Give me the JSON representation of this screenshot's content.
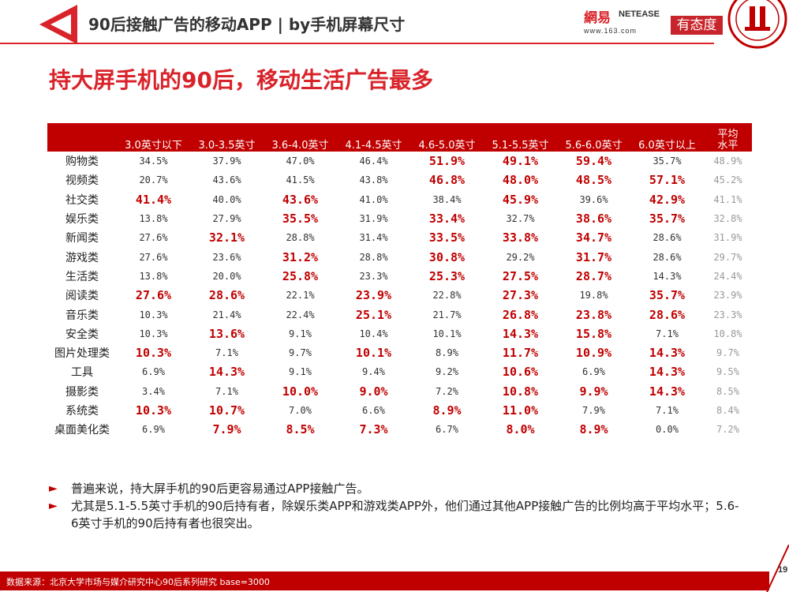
{
  "header": {
    "title": "90后接触广告的移动APP | by手机屏幕尺寸",
    "netease_cn": "網易",
    "netease_en": "NETEASE",
    "netease_url": "www.163.com",
    "youtaidu": "有态度"
  },
  "headline": "持大屏手机的90后，移动生活广告最多",
  "table": {
    "columns": [
      "3.0英寸以下",
      "3.0-3.5英寸",
      "3.6-4.0英寸",
      "4.1-4.5英寸",
      "4.6-5.0英寸",
      "5.1-5.5英寸",
      "5.6-6.0英寸",
      "6.0英寸以上",
      "平均水平"
    ],
    "avg_line1": "平均",
    "avg_line2": "水平",
    "rows": [
      {
        "cat": "购物类",
        "v": [
          "34.5%",
          "37.9%",
          "47.0%",
          "46.4%",
          "51.9%",
          "49.1%",
          "59.4%",
          "35.7%",
          "48.9%"
        ],
        "hl": [
          0,
          0,
          0,
          0,
          1,
          1,
          1,
          0
        ]
      },
      {
        "cat": "视频类",
        "v": [
          "20.7%",
          "43.6%",
          "41.5%",
          "43.8%",
          "46.8%",
          "48.0%",
          "48.5%",
          "57.1%",
          "45.2%"
        ],
        "hl": [
          0,
          0,
          0,
          0,
          1,
          1,
          1,
          1
        ]
      },
      {
        "cat": "社交类",
        "v": [
          "41.4%",
          "40.0%",
          "43.6%",
          "41.0%",
          "38.4%",
          "45.9%",
          "39.6%",
          "42.9%",
          "41.1%"
        ],
        "hl": [
          1,
          0,
          1,
          0,
          0,
          1,
          0,
          1
        ]
      },
      {
        "cat": "娱乐类",
        "v": [
          "13.8%",
          "27.9%",
          "35.5%",
          "31.9%",
          "33.4%",
          "32.7%",
          "38.6%",
          "35.7%",
          "32.8%"
        ],
        "hl": [
          0,
          0,
          1,
          0,
          1,
          0,
          1,
          1
        ]
      },
      {
        "cat": "新闻类",
        "v": [
          "27.6%",
          "32.1%",
          "28.8%",
          "31.4%",
          "33.5%",
          "33.8%",
          "34.7%",
          "28.6%",
          "31.9%"
        ],
        "hl": [
          0,
          1,
          0,
          0,
          1,
          1,
          1,
          0
        ]
      },
      {
        "cat": "游戏类",
        "v": [
          "27.6%",
          "23.6%",
          "31.2%",
          "28.8%",
          "30.8%",
          "29.2%",
          "31.7%",
          "28.6%",
          "29.7%"
        ],
        "hl": [
          0,
          0,
          1,
          0,
          1,
          0,
          1,
          0
        ]
      },
      {
        "cat": "生活类",
        "v": [
          "13.8%",
          "20.0%",
          "25.8%",
          "23.3%",
          "25.3%",
          "27.5%",
          "28.7%",
          "14.3%",
          "24.4%"
        ],
        "hl": [
          0,
          0,
          1,
          0,
          1,
          1,
          1,
          0
        ]
      },
      {
        "cat": "阅读类",
        "v": [
          "27.6%",
          "28.6%",
          "22.1%",
          "23.9%",
          "22.8%",
          "27.3%",
          "19.8%",
          "35.7%",
          "23.9%"
        ],
        "hl": [
          1,
          1,
          0,
          1,
          0,
          1,
          0,
          1
        ]
      },
      {
        "cat": "音乐类",
        "v": [
          "10.3%",
          "21.4%",
          "22.4%",
          "25.1%",
          "21.7%",
          "26.8%",
          "23.8%",
          "28.6%",
          "23.3%"
        ],
        "hl": [
          0,
          0,
          0,
          1,
          0,
          1,
          1,
          1
        ]
      },
      {
        "cat": "安全类",
        "v": [
          "10.3%",
          "13.6%",
          "9.1%",
          "10.4%",
          "10.1%",
          "14.3%",
          "15.8%",
          "7.1%",
          "10.8%"
        ],
        "hl": [
          0,
          1,
          0,
          0,
          0,
          1,
          1,
          0
        ]
      },
      {
        "cat": "图片处理类",
        "v": [
          "10.3%",
          "7.1%",
          "9.7%",
          "10.1%",
          "8.9%",
          "11.7%",
          "10.9%",
          "14.3%",
          "9.7%"
        ],
        "hl": [
          1,
          0,
          0,
          1,
          0,
          1,
          1,
          1
        ]
      },
      {
        "cat": "工具",
        "v": [
          "6.9%",
          "14.3%",
          "9.1%",
          "9.4%",
          "9.2%",
          "10.6%",
          "6.9%",
          "14.3%",
          "9.5%"
        ],
        "hl": [
          0,
          1,
          0,
          0,
          0,
          1,
          0,
          1
        ]
      },
      {
        "cat": "摄影类",
        "v": [
          "3.4%",
          "7.1%",
          "10.0%",
          "9.0%",
          "7.2%",
          "10.8%",
          "9.9%",
          "14.3%",
          "8.5%"
        ],
        "hl": [
          0,
          0,
          1,
          1,
          0,
          1,
          1,
          1
        ]
      },
      {
        "cat": "系统类",
        "v": [
          "10.3%",
          "10.7%",
          "7.0%",
          "6.6%",
          "8.9%",
          "11.0%",
          "7.9%",
          "7.1%",
          "8.4%"
        ],
        "hl": [
          1,
          1,
          0,
          0,
          1,
          1,
          0,
          0
        ]
      },
      {
        "cat": "桌面美化类",
        "v": [
          "6.9%",
          "7.9%",
          "8.5%",
          "7.3%",
          "6.7%",
          "8.0%",
          "8.9%",
          "0.0%",
          "7.2%"
        ],
        "hl": [
          0,
          1,
          1,
          1,
          0,
          1,
          1,
          0
        ]
      }
    ]
  },
  "notes": [
    "普遍来说，持大屏手机的90后更容易通过APP接触广告。",
    "尤其是5.1-5.5英寸手机的90后持有者，除娱乐类APP和游戏类APP外，他们通过其他APP接触广告的比例均高于平均水平；5.6-6英寸手机的90后持有者也很突出。"
  ],
  "note_marker": "►",
  "footer": {
    "source": "数据来源：北京大学市场与媒介研究中心90后系列研究 base=3000",
    "page": "19"
  },
  "colors": {
    "brand_red": "#c00000",
    "accent_red": "#d9232a"
  }
}
